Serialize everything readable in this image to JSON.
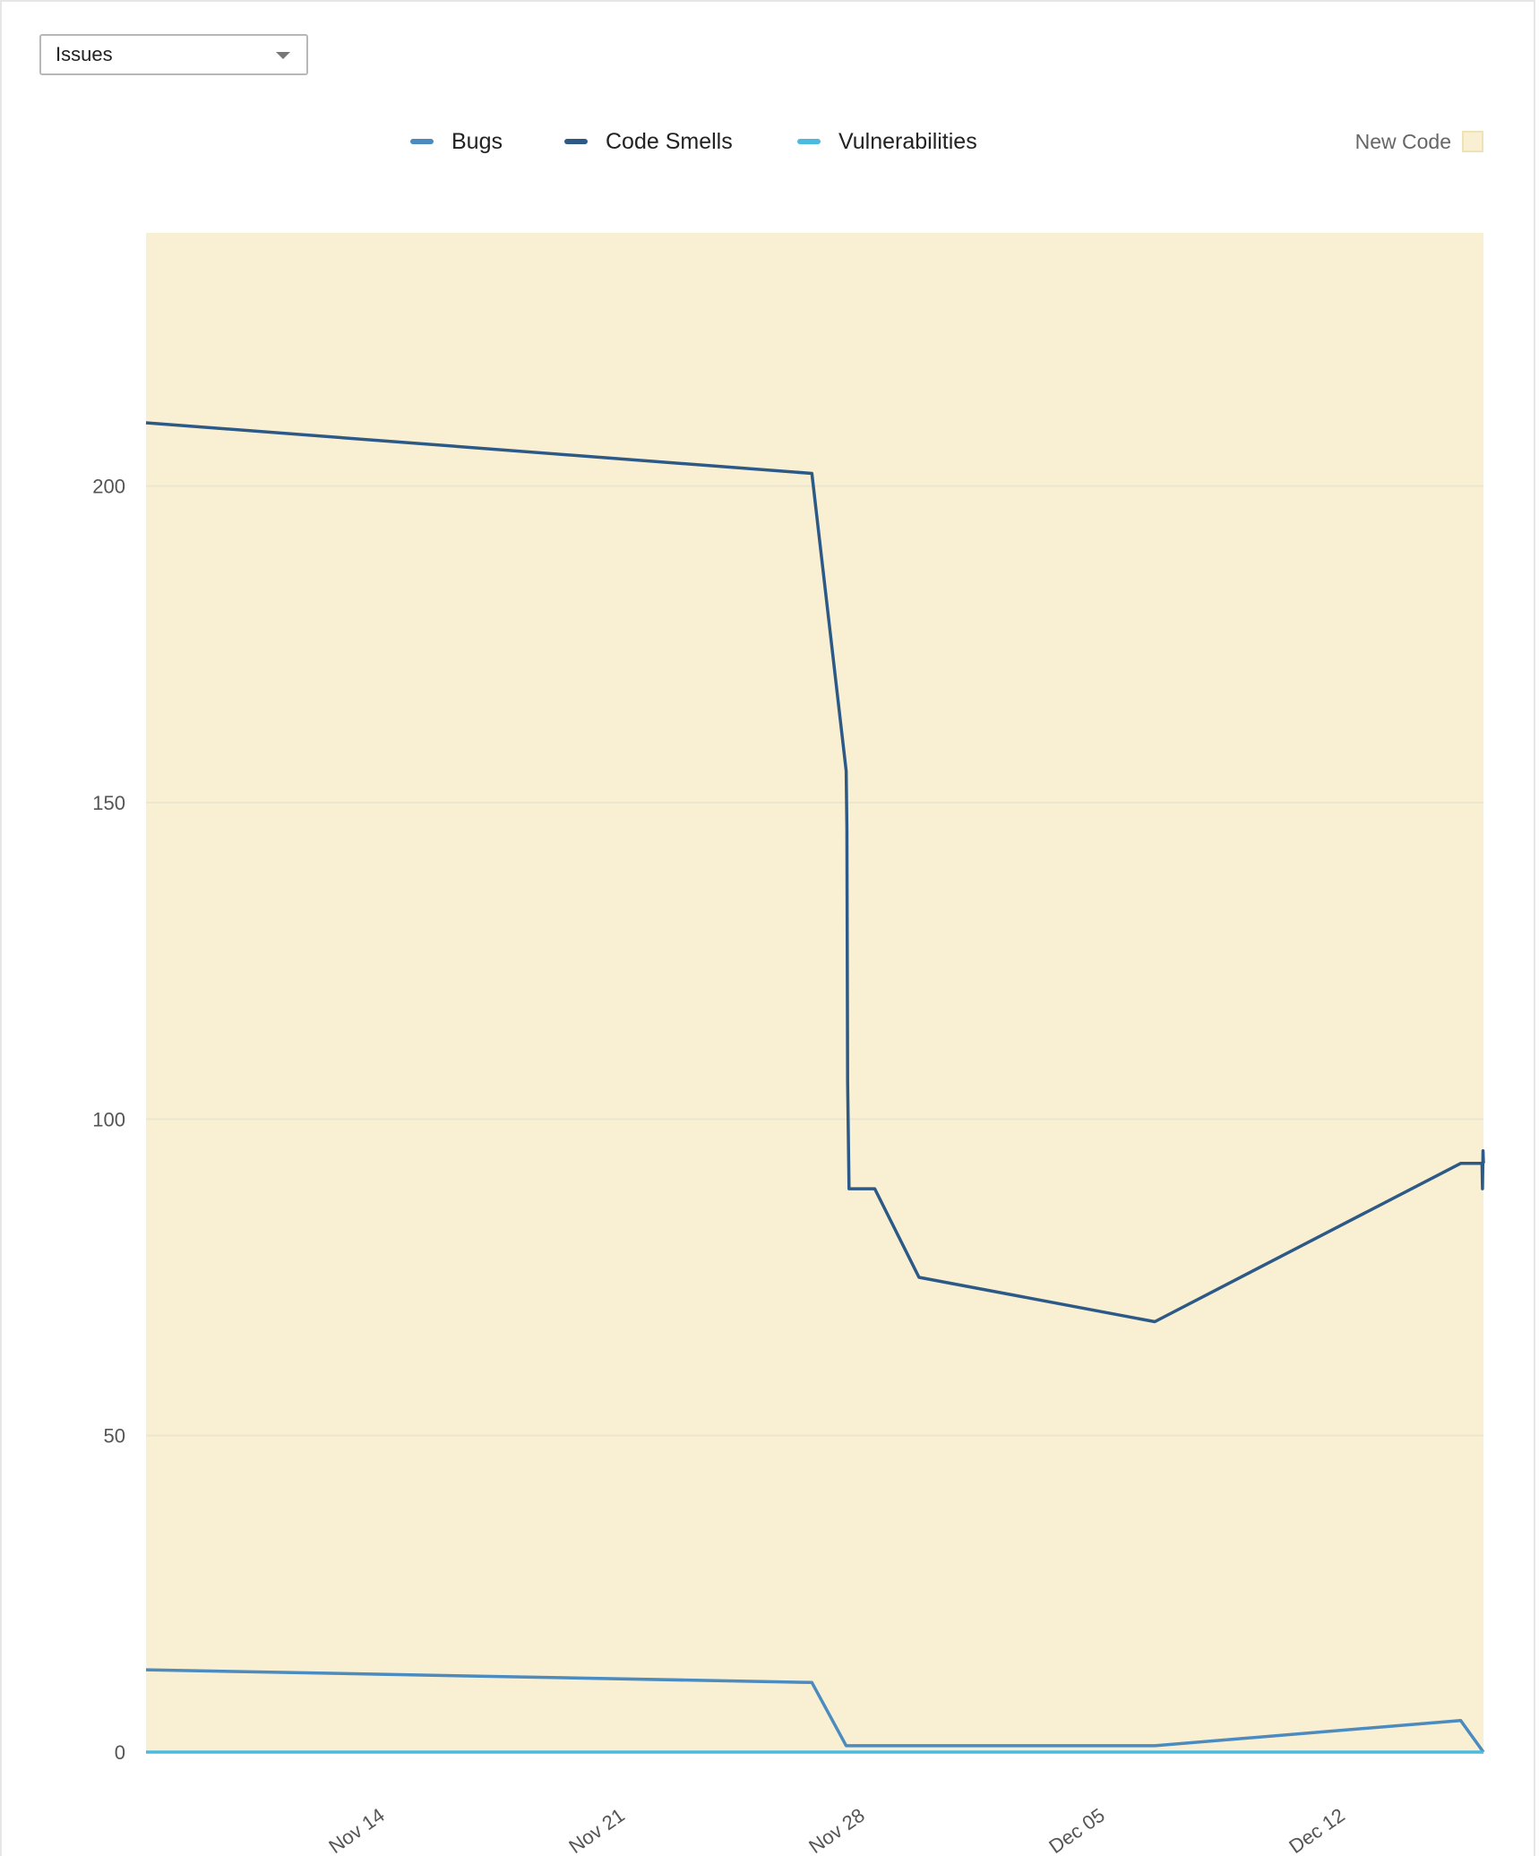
{
  "metric_select": {
    "value": "Issues"
  },
  "legend": {
    "new_code_label": "New Code",
    "new_code_color": "#f9f0d4"
  },
  "chart_data": {
    "type": "line",
    "x_axis": {
      "type": "date",
      "range": [
        "2023-11-07",
        "2023-12-16"
      ],
      "tick_labels": [
        "Nov 14",
        "Nov 21",
        "Nov 28",
        "Dec 05",
        "Dec 12"
      ],
      "tick_dates": [
        "2023-11-14",
        "2023-11-21",
        "2023-11-28",
        "2023-12-05",
        "2023-12-12"
      ]
    },
    "y_axis": {
      "range": [
        0,
        240
      ],
      "tick_labels": [
        "0",
        "50",
        "100",
        "150",
        "200"
      ],
      "tick_values": [
        0,
        50,
        100,
        150,
        200
      ]
    },
    "grid": true,
    "new_code_period": [
      "2023-11-07",
      "2023-12-16"
    ],
    "series": [
      {
        "name": "Bugs",
        "color": "#4b8bbf",
        "points": [
          [
            "2023-11-07T00:00",
            13
          ],
          [
            "2023-11-26T10:00",
            11
          ],
          [
            "2023-11-27T10:00",
            1
          ],
          [
            "2023-12-06T10:00",
            1
          ],
          [
            "2023-12-15T08:00",
            5
          ],
          [
            "2023-12-16T00:00",
            0
          ]
        ]
      },
      {
        "name": "Code Smells",
        "color": "#2c5986",
        "points": [
          [
            "2023-11-07T00:00",
            210
          ],
          [
            "2023-11-26T10:00",
            202
          ],
          [
            "2023-11-27T10:00",
            155
          ],
          [
            "2023-11-27T10:30",
            146
          ],
          [
            "2023-11-27T11:00",
            106
          ],
          [
            "2023-11-27T12:00",
            89
          ],
          [
            "2023-11-28T06:00",
            89
          ],
          [
            "2023-11-29T13:00",
            75
          ],
          [
            "2023-12-06T10:00",
            68
          ],
          [
            "2023-12-15T08:00",
            93
          ],
          [
            "2023-12-15T23:00",
            93
          ],
          [
            "2023-12-15T23:20",
            89
          ],
          [
            "2023-12-15T23:40",
            95
          ],
          [
            "2023-12-16T00:00",
            93
          ]
        ]
      },
      {
        "name": "Vulnerabilities",
        "color": "#4cb9df",
        "points": [
          [
            "2023-11-07T00:00",
            0
          ],
          [
            "2023-12-16T00:00",
            0
          ]
        ]
      }
    ]
  }
}
